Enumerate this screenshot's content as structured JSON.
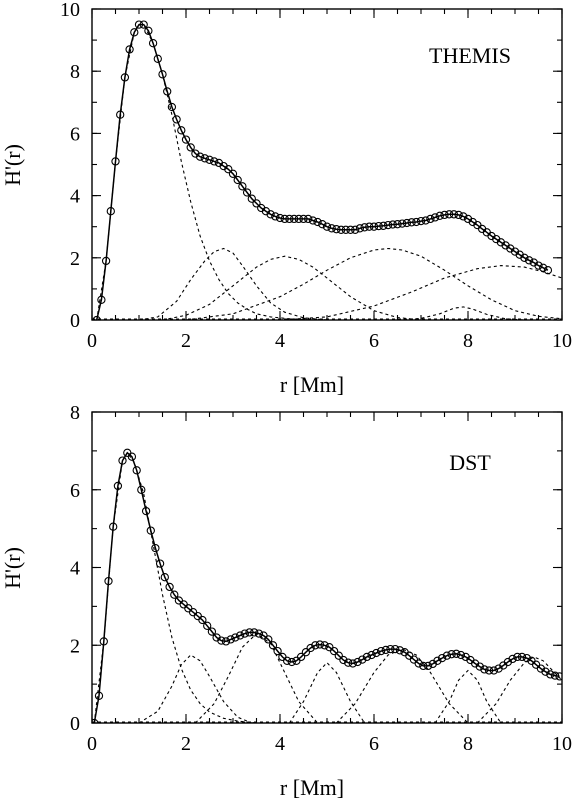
{
  "chart_data": [
    {
      "type": "line",
      "title": "THEMIS",
      "xlabel": "r [Mm]",
      "ylabel": "H'(r)",
      "xlim": [
        0,
        10
      ],
      "ylim": [
        0,
        10
      ],
      "xticks": [
        "0",
        "2",
        "4",
        "6",
        "8",
        "10"
      ],
      "yticks": [
        "0",
        "2",
        "4",
        "6",
        "8",
        "10"
      ],
      "grid": false,
      "series": [
        {
          "style": "circles-with-solid-line",
          "x": [
            0.1,
            0.2,
            0.3,
            0.4,
            0.5,
            0.6,
            0.7,
            0.8,
            0.9,
            1.0,
            1.1,
            1.2,
            1.3,
            1.4,
            1.5,
            1.6,
            1.7,
            1.8,
            1.9,
            2.0,
            2.1,
            2.2,
            2.3,
            2.4,
            2.5,
            2.6,
            2.7,
            2.8,
            2.9,
            3.0,
            3.1,
            3.2,
            3.3,
            3.4,
            3.5,
            3.6,
            3.7,
            3.8,
            3.9,
            4.0,
            4.1,
            4.2,
            4.3,
            4.4,
            4.5,
            4.6,
            4.7,
            4.8,
            4.9,
            5.0,
            5.1,
            5.2,
            5.3,
            5.4,
            5.5,
            5.6,
            5.7,
            5.8,
            5.9,
            6.0,
            6.1,
            6.2,
            6.3,
            6.4,
            6.5,
            6.6,
            6.7,
            6.8,
            6.9,
            7.0,
            7.1,
            7.2,
            7.3,
            7.4,
            7.5,
            7.6,
            7.7,
            7.8,
            7.9,
            8.0,
            8.1,
            8.2,
            8.3,
            8.4,
            8.5,
            8.6,
            8.7,
            8.8,
            8.9,
            9.0,
            9.1,
            9.2,
            9.3,
            9.4,
            9.5,
            9.6,
            9.7
          ],
          "y": [
            0.0,
            0.65,
            1.9,
            3.5,
            5.1,
            6.6,
            7.8,
            8.7,
            9.25,
            9.5,
            9.5,
            9.3,
            8.9,
            8.4,
            7.9,
            7.35,
            6.85,
            6.45,
            6.1,
            5.8,
            5.55,
            5.35,
            5.25,
            5.2,
            5.15,
            5.1,
            5.05,
            4.95,
            4.85,
            4.7,
            4.5,
            4.3,
            4.1,
            3.9,
            3.75,
            3.6,
            3.5,
            3.4,
            3.33,
            3.28,
            3.25,
            3.25,
            3.25,
            3.25,
            3.25,
            3.25,
            3.2,
            3.15,
            3.08,
            3.0,
            2.95,
            2.92,
            2.9,
            2.9,
            2.9,
            2.9,
            2.95,
            2.98,
            3.0,
            3.0,
            3.02,
            3.03,
            3.05,
            3.07,
            3.08,
            3.1,
            3.12,
            3.14,
            3.15,
            3.18,
            3.2,
            3.25,
            3.3,
            3.35,
            3.38,
            3.4,
            3.4,
            3.38,
            3.33,
            3.25,
            3.15,
            3.05,
            2.93,
            2.82,
            2.7,
            2.6,
            2.5,
            2.4,
            2.3,
            2.2,
            2.1,
            2.0,
            1.92,
            1.85,
            1.75,
            1.68,
            1.6
          ]
        },
        {
          "style": "dotted-component",
          "x": [
            0.1,
            0.3,
            0.5,
            0.7,
            0.9,
            1.0,
            1.1,
            1.3,
            1.5,
            1.7,
            1.9,
            2.1,
            2.3,
            2.5,
            2.7,
            2.9,
            3.1,
            3.3,
            3.5,
            3.8,
            4.2,
            4.6,
            5.0
          ],
          "y": [
            0.0,
            1.9,
            5.1,
            7.8,
            9.25,
            9.5,
            9.5,
            8.9,
            7.9,
            6.6,
            5.1,
            3.8,
            2.7,
            1.9,
            1.3,
            0.85,
            0.55,
            0.35,
            0.2,
            0.1,
            0.04,
            0.01,
            0.0
          ]
        },
        {
          "style": "dotted-component",
          "x": [
            1.0,
            1.4,
            1.8,
            2.1,
            2.4,
            2.6,
            2.8,
            3.0,
            3.2,
            3.5,
            3.8,
            4.1,
            4.5,
            5.0
          ],
          "y": [
            0.0,
            0.1,
            0.6,
            1.3,
            1.9,
            2.2,
            2.3,
            2.15,
            1.75,
            1.1,
            0.55,
            0.25,
            0.07,
            0.0
          ]
        },
        {
          "style": "dotted-component",
          "x": [
            1.5,
            2.0,
            2.5,
            3.0,
            3.5,
            3.8,
            4.1,
            4.4,
            4.7,
            5.0,
            5.5,
            6.0,
            6.5,
            7.0
          ],
          "y": [
            0.0,
            0.15,
            0.5,
            1.1,
            1.7,
            1.95,
            2.05,
            1.95,
            1.7,
            1.35,
            0.75,
            0.3,
            0.08,
            0.0
          ]
        },
        {
          "style": "dotted-component",
          "x": [
            2.0,
            3.0,
            4.0,
            4.5,
            5.0,
            5.5,
            6.0,
            6.3,
            6.6,
            7.0,
            7.5,
            8.0,
            8.5,
            9.0,
            9.5,
            10.0
          ],
          "y": [
            0.0,
            0.2,
            0.75,
            1.15,
            1.6,
            2.0,
            2.25,
            2.3,
            2.25,
            2.05,
            1.6,
            1.1,
            0.65,
            0.3,
            0.12,
            0.04
          ]
        },
        {
          "style": "dotted-component",
          "x": [
            6.5,
            7.0,
            7.4,
            7.7,
            7.9,
            8.1,
            8.4,
            8.8,
            9.2
          ],
          "y": [
            0.0,
            0.05,
            0.2,
            0.38,
            0.42,
            0.35,
            0.18,
            0.04,
            0.0
          ]
        },
        {
          "style": "dotted-component",
          "x": [
            4.0,
            5.0,
            6.0,
            6.8,
            7.5,
            8.2,
            8.7,
            9.2,
            9.6,
            10.0
          ],
          "y": [
            0.0,
            0.1,
            0.45,
            0.9,
            1.35,
            1.65,
            1.75,
            1.7,
            1.55,
            1.35
          ]
        }
      ]
    },
    {
      "type": "line",
      "title": "DST",
      "xlabel": "r [Mm]",
      "ylabel": "H'(r)",
      "xlim": [
        0,
        10
      ],
      "ylim": [
        0,
        8
      ],
      "xticks": [
        "0",
        "2",
        "4",
        "6",
        "8",
        "10"
      ],
      "yticks": [
        "0",
        "2",
        "4",
        "6",
        "8"
      ],
      "grid": false,
      "series": [
        {
          "style": "circles-with-solid-line",
          "x": [
            0.05,
            0.15,
            0.25,
            0.35,
            0.45,
            0.55,
            0.65,
            0.75,
            0.85,
            0.95,
            1.05,
            1.15,
            1.25,
            1.35,
            1.45,
            1.55,
            1.65,
            1.75,
            1.85,
            1.95,
            2.05,
            2.15,
            2.25,
            2.35,
            2.45,
            2.55,
            2.65,
            2.75,
            2.85,
            2.95,
            3.05,
            3.15,
            3.25,
            3.35,
            3.45,
            3.55,
            3.65,
            3.75,
            3.85,
            3.95,
            4.05,
            4.15,
            4.25,
            4.35,
            4.45,
            4.55,
            4.65,
            4.75,
            4.85,
            4.95,
            5.05,
            5.15,
            5.25,
            5.35,
            5.45,
            5.55,
            5.65,
            5.75,
            5.85,
            5.95,
            6.05,
            6.15,
            6.25,
            6.35,
            6.45,
            6.55,
            6.65,
            6.75,
            6.85,
            6.95,
            7.05,
            7.15,
            7.25,
            7.35,
            7.45,
            7.55,
            7.65,
            7.75,
            7.85,
            7.95,
            8.05,
            8.15,
            8.25,
            8.35,
            8.45,
            8.55,
            8.65,
            8.75,
            8.85,
            8.95,
            9.05,
            9.15,
            9.25,
            9.35,
            9.45,
            9.55,
            9.65,
            9.75,
            9.85,
            9.95
          ],
          "y": [
            0.0,
            0.7,
            2.1,
            3.65,
            5.05,
            6.1,
            6.75,
            6.95,
            6.85,
            6.5,
            6.0,
            5.45,
            4.95,
            4.5,
            4.1,
            3.75,
            3.5,
            3.3,
            3.15,
            3.05,
            2.95,
            2.85,
            2.75,
            2.65,
            2.5,
            2.35,
            2.2,
            2.12,
            2.1,
            2.15,
            2.2,
            2.25,
            2.3,
            2.33,
            2.33,
            2.3,
            2.25,
            2.15,
            2.0,
            1.85,
            1.7,
            1.6,
            1.57,
            1.6,
            1.7,
            1.82,
            1.93,
            2.0,
            2.02,
            2.0,
            1.95,
            1.85,
            1.73,
            1.62,
            1.55,
            1.53,
            1.57,
            1.63,
            1.7,
            1.75,
            1.8,
            1.85,
            1.88,
            1.9,
            1.9,
            1.87,
            1.82,
            1.73,
            1.63,
            1.53,
            1.47,
            1.47,
            1.52,
            1.6,
            1.67,
            1.73,
            1.77,
            1.78,
            1.75,
            1.7,
            1.62,
            1.53,
            1.45,
            1.38,
            1.35,
            1.35,
            1.4,
            1.48,
            1.57,
            1.65,
            1.7,
            1.7,
            1.67,
            1.6,
            1.5,
            1.4,
            1.32,
            1.25,
            1.22,
            1.2
          ]
        },
        {
          "style": "dotted-component",
          "x": [
            0.05,
            0.25,
            0.45,
            0.65,
            0.75,
            0.9,
            1.1,
            1.3,
            1.5,
            1.7,
            1.9,
            2.1,
            2.3,
            2.5,
            2.8,
            3.1,
            3.5
          ],
          "y": [
            0.0,
            2.1,
            5.05,
            6.75,
            6.95,
            6.7,
            5.9,
            4.6,
            3.3,
            2.2,
            1.4,
            0.85,
            0.5,
            0.28,
            0.12,
            0.05,
            0.0
          ]
        },
        {
          "style": "dotted-component",
          "x": [
            1.0,
            1.4,
            1.7,
            1.9,
            2.1,
            2.3,
            2.5,
            2.8,
            3.1,
            3.4
          ],
          "y": [
            0.0,
            0.3,
            0.95,
            1.5,
            1.75,
            1.6,
            1.2,
            0.55,
            0.15,
            0.0
          ]
        },
        {
          "style": "dotted-component",
          "x": [
            2.2,
            2.6,
            2.9,
            3.2,
            3.5,
            3.8,
            4.1,
            4.4,
            4.8
          ],
          "y": [
            0.0,
            0.5,
            1.2,
            1.95,
            2.3,
            2.05,
            1.3,
            0.55,
            0.0
          ]
        },
        {
          "style": "dotted-component",
          "x": [
            4.2,
            4.5,
            4.8,
            5.0,
            5.2,
            5.5,
            5.8
          ],
          "y": [
            0.0,
            0.55,
            1.3,
            1.55,
            1.3,
            0.55,
            0.0
          ]
        },
        {
          "style": "dotted-component",
          "x": [
            5.2,
            5.6,
            6.0,
            6.3,
            6.6,
            6.9,
            7.2,
            7.6,
            8.0
          ],
          "y": [
            0.0,
            0.5,
            1.3,
            1.75,
            1.9,
            1.75,
            1.3,
            0.5,
            0.0
          ]
        },
        {
          "style": "dotted-component",
          "x": [
            7.3,
            7.6,
            7.8,
            8.0,
            8.2,
            8.4,
            8.7
          ],
          "y": [
            0.0,
            0.55,
            1.1,
            1.35,
            1.1,
            0.55,
            0.0
          ]
        },
        {
          "style": "dotted-component",
          "x": [
            8.2,
            8.6,
            8.9,
            9.2,
            9.4,
            9.6,
            9.8,
            10.0
          ],
          "y": [
            0.0,
            0.5,
            1.1,
            1.55,
            1.7,
            1.6,
            1.35,
            1.1
          ]
        }
      ]
    }
  ]
}
